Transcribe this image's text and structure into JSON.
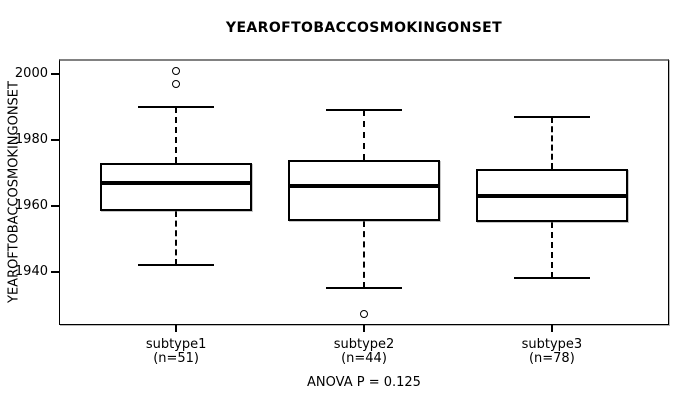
{
  "title": "YEAROFTOBACCOSMOKINGONSET",
  "footer": "ANOVA P = 0.125",
  "chart_data": {
    "type": "boxplot",
    "title": "YEAROFTOBACCOSMOKINGONSET",
    "ylabel": "YEAROFTOBACCOSMOKINGONSET",
    "xlabel": "",
    "ylim": [
      1923.8,
      2004.5
    ],
    "yticks": [
      2000,
      1980,
      1960,
      1940
    ],
    "grid": false,
    "annotation": "ANOVA P = 0.125",
    "groups": [
      {
        "label": "subtype1",
        "sublabel": "(n=51)",
        "n": 51,
        "whisker_low": 1942,
        "q1": 1958.5,
        "median": 1967,
        "q3": 1973,
        "whisker_high": 1990,
        "outliers": [
          1997,
          2001
        ]
      },
      {
        "label": "subtype2",
        "sublabel": "(n=44)",
        "n": 44,
        "whisker_low": 1935,
        "q1": 1955.5,
        "median": 1966,
        "q3": 1974,
        "whisker_high": 1989,
        "outliers": [
          1927
        ]
      },
      {
        "label": "subtype3",
        "sublabel": "(n=78)",
        "n": 78,
        "whisker_low": 1938,
        "q1": 1955,
        "median": 1963,
        "q3": 1971,
        "whisker_high": 1987,
        "outliers": []
      }
    ],
    "colors": {
      "line": "#000000",
      "box_fill": "#ffffff",
      "frame_shadow": "#818181",
      "background": "#ffffff"
    }
  }
}
